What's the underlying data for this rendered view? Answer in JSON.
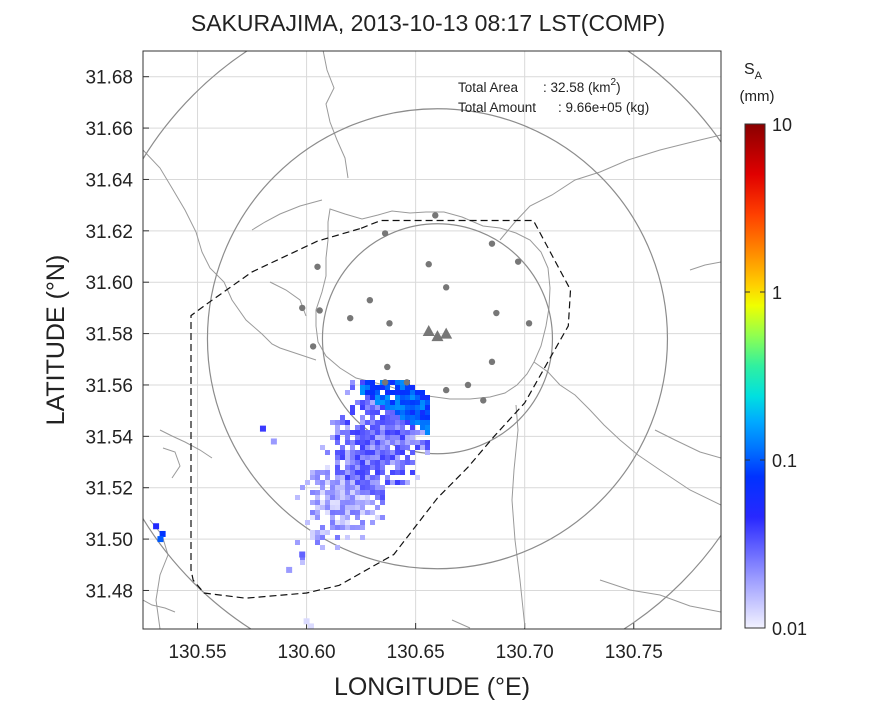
{
  "chart_data": {
    "type": "heatmap",
    "title": "SAKURAJIMA, 2013-10-13 08:17 LST(COMP)",
    "xlabel": "LONGITUDE (°E)",
    "ylabel": "LATITUDE (°N)",
    "xlim": [
      130.525,
      130.79
    ],
    "ylim": [
      31.465,
      31.69
    ],
    "xticks": [
      130.55,
      130.6,
      130.65,
      130.7,
      130.75
    ],
    "yticks": [
      31.48,
      31.5,
      31.52,
      31.54,
      31.56,
      31.58,
      31.6,
      31.62,
      31.64,
      31.66,
      31.68
    ],
    "xtick_labels": [
      "130.55",
      "130.60",
      "130.65",
      "130.70",
      "130.75"
    ],
    "ytick_labels": [
      "31.48",
      "31.50",
      "31.52",
      "31.54",
      "31.56",
      "31.58",
      "31.60",
      "31.62",
      "31.64",
      "31.66",
      "31.68"
    ],
    "grid": true,
    "annotations": {
      "area_label": "Total Area",
      "area_value": ": 32.58 (km",
      "area_sup": "2",
      "area_end": ")",
      "amount_label": "Total Amount",
      "amount_value": ": 9.66e+05 (kg)"
    },
    "colorbar": {
      "label_main": "S",
      "label_sub": "A",
      "unit": "(mm)",
      "scale": "log",
      "range": [
        0.01,
        10
      ],
      "tick_labels": [
        "10",
        "1",
        "0.1",
        "0.01"
      ],
      "tick_values": [
        10,
        1,
        0.1,
        0.01
      ]
    },
    "range_circles_center": [
      130.66,
      31.578
    ],
    "stations": [
      [
        130.659,
        31.626
      ],
      [
        130.636,
        31.619
      ],
      [
        130.685,
        31.615
      ],
      [
        130.605,
        31.606
      ],
      [
        130.656,
        31.607
      ],
      [
        130.697,
        31.608
      ],
      [
        130.664,
        31.598
      ],
      [
        130.598,
        31.59
      ],
      [
        130.606,
        31.589
      ],
      [
        130.629,
        31.593
      ],
      [
        130.62,
        31.586
      ],
      [
        130.638,
        31.584
      ],
      [
        130.687,
        31.588
      ],
      [
        130.702,
        31.584
      ],
      [
        130.603,
        31.575
      ],
      [
        130.637,
        31.567
      ],
      [
        130.685,
        31.569
      ],
      [
        130.646,
        31.561
      ],
      [
        130.674,
        31.56
      ],
      [
        130.636,
        31.561
      ],
      [
        130.664,
        31.558
      ],
      [
        130.681,
        31.554
      ]
    ],
    "vents": [
      [
        130.656,
        31.581
      ],
      [
        130.66,
        31.579
      ],
      [
        130.664,
        31.58
      ]
    ],
    "ash_plume": {
      "axis_start": [
        130.645,
        31.557
      ],
      "axis_end": [
        130.6,
        31.495
      ],
      "peak_value_mm": 0.15,
      "typical_value_mm": 0.02
    },
    "ash_outliers": [
      [
        130.531,
        31.505,
        0.05
      ],
      [
        130.534,
        31.502,
        0.08
      ],
      [
        130.533,
        31.5,
        0.1
      ],
      [
        130.6,
        31.468,
        0.012
      ],
      [
        130.602,
        31.466,
        0.012
      ],
      [
        130.58,
        31.543,
        0.04
      ],
      [
        130.585,
        31.538,
        0.02
      ],
      [
        130.592,
        31.488,
        0.02
      ],
      [
        130.598,
        31.494,
        0.03
      ]
    ]
  }
}
